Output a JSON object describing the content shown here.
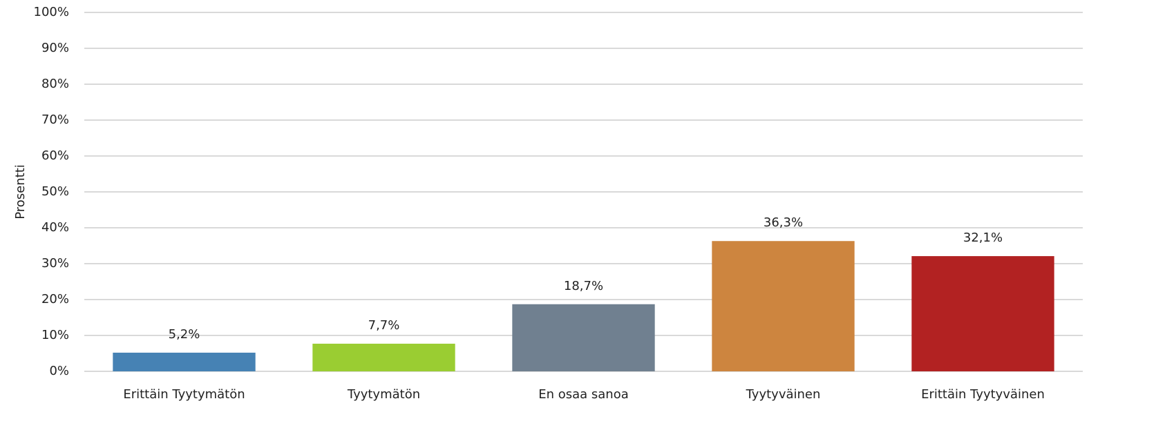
{
  "chart_data": {
    "type": "bar",
    "ylabel": "Prosentti",
    "categories": [
      "Erittäin Tyytymätön",
      "Tyytymätön",
      "En osaa sanoa",
      "Tyytyväinen",
      "Erittäin Tyytyväinen"
    ],
    "values": [
      5.2,
      7.7,
      18.7,
      36.3,
      32.1
    ],
    "value_labels": [
      "5,2%",
      "7,7%",
      "18,7%",
      "36,3%",
      "32,1%"
    ],
    "colors": [
      "#4682b4",
      "#9acd32",
      "#708090",
      "#cd853f",
      "#b22222"
    ],
    "ylim": [
      0,
      100
    ],
    "yticks": [
      {
        "value": 0,
        "label": "0%"
      },
      {
        "value": 10,
        "label": "10%"
      },
      {
        "value": 20,
        "label": "20%"
      },
      {
        "value": 30,
        "label": "30%"
      },
      {
        "value": 40,
        "label": "40%"
      },
      {
        "value": 50,
        "label": "50%"
      },
      {
        "value": 60,
        "label": "60%"
      },
      {
        "value": 70,
        "label": "70%"
      },
      {
        "value": 80,
        "label": "80%"
      },
      {
        "value": 90,
        "label": "90%"
      },
      {
        "value": 100,
        "label": "100%"
      }
    ],
    "grid": true
  }
}
